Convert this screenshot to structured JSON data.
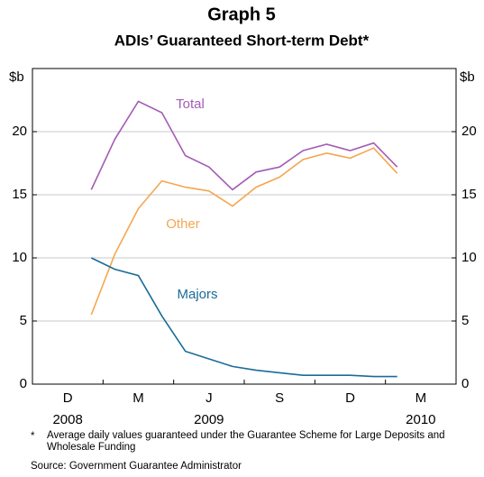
{
  "chart_data": {
    "type": "line",
    "title": "Graph 5",
    "subtitle": "ADIs’ Guaranteed Short-term Debt*",
    "y_unit": "$b",
    "x": [
      "2009-02",
      "2009-03",
      "2009-04",
      "2009-05",
      "2009-06",
      "2009-07",
      "2009-08",
      "2009-09",
      "2009-10",
      "2009-11",
      "2009-12",
      "2010-01",
      "2010-02",
      "2010-03"
    ],
    "xlim": [
      "2008-12",
      "2010-06"
    ],
    "xticks": [
      {
        "value": "2008-12",
        "label": "D"
      },
      {
        "value": "2009-03",
        "label": "M"
      },
      {
        "value": "2009-06",
        "label": "J"
      },
      {
        "value": "2009-09",
        "label": "S"
      },
      {
        "value": "2009-12",
        "label": "D"
      },
      {
        "value": "2010-03",
        "label": "M"
      }
    ],
    "year_labels": [
      {
        "value": "2008-12",
        "label": "2008"
      },
      {
        "value": "2009-06",
        "label": "2009"
      },
      {
        "value": "2010-03",
        "label": "2010"
      }
    ],
    "ylim": [
      0,
      25
    ],
    "yticks": [
      0,
      5,
      10,
      15,
      20
    ],
    "grid": true,
    "series": [
      {
        "name": "Total",
        "color": "#a35db3",
        "values": [
          15.4,
          19.4,
          22.4,
          21.5,
          18.1,
          17.2,
          15.4,
          16.8,
          17.2,
          18.5,
          19.0,
          18.5,
          19.1,
          17.2
        ]
      },
      {
        "name": "Other",
        "color": "#f4a651",
        "values": [
          5.5,
          10.3,
          13.9,
          16.1,
          15.6,
          15.3,
          14.1,
          15.6,
          16.4,
          17.8,
          18.3,
          17.9,
          18.7,
          16.7
        ]
      },
      {
        "name": "Majors",
        "color": "#1a6b98",
        "values": [
          10.0,
          9.1,
          8.6,
          5.4,
          2.6,
          2.0,
          1.4,
          1.1,
          0.9,
          0.7,
          0.7,
          0.7,
          0.6,
          0.6
        ]
      }
    ],
    "footnote": "Average daily values guaranteed under the Guarantee Scheme for Large Deposits and Wholesale Funding",
    "footnote_mark": "*",
    "source": "Source: Government Guarantee Administrator"
  }
}
